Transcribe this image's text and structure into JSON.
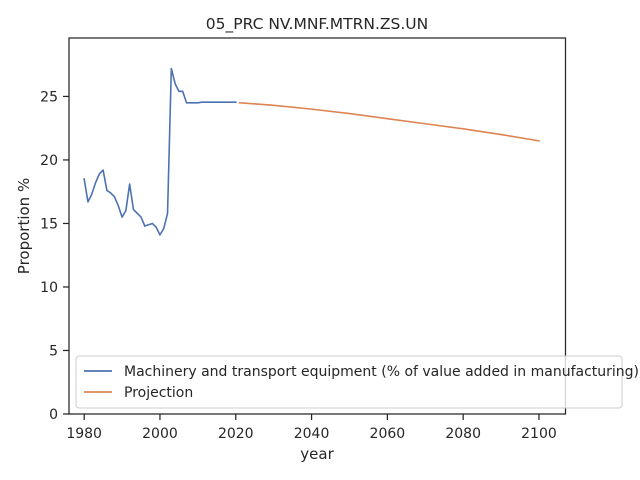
{
  "chart_data": {
    "type": "line",
    "title": "05_PRC NV.MNF.MTRN.ZS.UN",
    "xlabel": "year",
    "ylabel": "Proportion %",
    "xlim": [
      1976,
      2107
    ],
    "ylim": [
      0,
      29.6
    ],
    "xticks": [
      1980,
      2000,
      2020,
      2040,
      2060,
      2080,
      2100
    ],
    "yticks": [
      0,
      5,
      10,
      15,
      20,
      25
    ],
    "grid": false,
    "legend_position": "lower-right",
    "series": [
      {
        "name": "Machinery and transport equipment (% of value added in manufacturing)",
        "color": "#4c72b0",
        "points": [
          [
            1980,
            18.5
          ],
          [
            1981,
            16.7
          ],
          [
            1982,
            17.3
          ],
          [
            1983,
            18.2
          ],
          [
            1984,
            18.9
          ],
          [
            1985,
            19.2
          ],
          [
            1986,
            17.6
          ],
          [
            1987,
            17.4
          ],
          [
            1988,
            17.1
          ],
          [
            1989,
            16.4
          ],
          [
            1990,
            15.5
          ],
          [
            1991,
            16.0
          ],
          [
            1992,
            18.1
          ],
          [
            1993,
            16.1
          ],
          [
            1994,
            15.8
          ],
          [
            1995,
            15.5
          ],
          [
            1996,
            14.8
          ],
          [
            1997,
            14.9
          ],
          [
            1998,
            15.0
          ],
          [
            1999,
            14.7
          ],
          [
            2000,
            14.1
          ],
          [
            2001,
            14.6
          ],
          [
            2002,
            15.8
          ],
          [
            2003,
            27.2
          ],
          [
            2004,
            26.0
          ],
          [
            2005,
            25.4
          ],
          [
            2006,
            25.4
          ],
          [
            2007,
            24.5
          ],
          [
            2008,
            24.5
          ],
          [
            2009,
            24.5
          ],
          [
            2010,
            24.5
          ],
          [
            2011,
            24.55
          ],
          [
            2012,
            24.55
          ],
          [
            2013,
            24.55
          ],
          [
            2014,
            24.55
          ],
          [
            2015,
            24.55
          ],
          [
            2016,
            24.55
          ],
          [
            2017,
            24.55
          ],
          [
            2018,
            24.55
          ],
          [
            2019,
            24.55
          ],
          [
            2020,
            24.55
          ]
        ]
      },
      {
        "name": "Projection",
        "color": "#dd8452",
        "points": [
          [
            2021,
            24.5
          ],
          [
            2030,
            24.3
          ],
          [
            2040,
            24.0
          ],
          [
            2050,
            23.65
          ],
          [
            2060,
            23.25
          ],
          [
            2070,
            22.85
          ],
          [
            2080,
            22.45
          ],
          [
            2090,
            22.0
          ],
          [
            2100,
            21.5
          ]
        ]
      }
    ]
  }
}
